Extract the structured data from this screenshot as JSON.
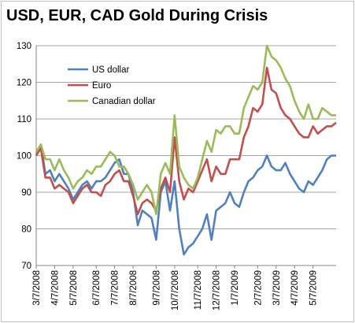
{
  "chart_data": {
    "type": "line",
    "title": "USD, EUR, CAD Gold During Crisis",
    "xlabel": "",
    "ylabel": "",
    "ylim": [
      70,
      130
    ],
    "yticks": [
      70,
      80,
      90,
      100,
      110,
      120,
      130
    ],
    "xtick_labels": [
      "3/7/2008",
      "4/7/2008",
      "5/7/2008",
      "6/7/2008",
      "7/7/2008",
      "8/7/2008",
      "9/7/2008",
      "10/7/2008",
      "11/7/2008",
      "12/7/2008",
      "1/7/2009",
      "2/7/2009",
      "3/7/2009",
      "4/7/2009",
      "5/7/2009"
    ],
    "grid": "horizontal",
    "legend_position": "top-left",
    "x": [
      "3/7/2008",
      "3/14/2008",
      "3/21/2008",
      "3/28/2008",
      "4/4/2008",
      "4/11/2008",
      "4/18/2008",
      "4/25/2008",
      "5/2/2008",
      "5/9/2008",
      "5/16/2008",
      "5/23/2008",
      "5/30/2008",
      "6/6/2008",
      "6/13/2008",
      "6/20/2008",
      "6/27/2008",
      "7/4/2008",
      "7/11/2008",
      "7/18/2008",
      "7/25/2008",
      "8/1/2008",
      "8/8/2008",
      "8/15/2008",
      "8/22/2008",
      "8/29/2008",
      "9/5/2008",
      "9/12/2008",
      "9/19/2008",
      "9/26/2008",
      "10/3/2008",
      "10/10/2008",
      "10/17/2008",
      "10/24/2008",
      "10/31/2008",
      "11/7/2008",
      "11/14/2008",
      "11/21/2008",
      "11/28/2008",
      "12/5/2008",
      "12/12/2008",
      "12/19/2008",
      "12/26/2008",
      "1/2/2009",
      "1/9/2009",
      "1/16/2009",
      "1/23/2009",
      "1/30/2009",
      "2/6/2009",
      "2/13/2009",
      "2/20/2009",
      "2/27/2009",
      "3/6/2009",
      "3/13/2009",
      "3/20/2009",
      "3/27/2009",
      "4/3/2009",
      "4/10/2009",
      "4/17/2009",
      "4/24/2009",
      "5/1/2009",
      "5/8/2009",
      "5/15/2009",
      "5/22/2009",
      "5/29/2009",
      "6/5/2009"
    ],
    "series": [
      {
        "name": "US dollar",
        "color": "#4f81bd",
        "values": [
          100,
          103,
          95,
          96,
          93,
          95,
          93,
          91,
          88,
          90,
          92,
          93,
          91,
          93,
          93,
          94,
          96,
          98,
          99,
          95,
          95,
          90,
          81,
          85,
          84,
          83,
          77,
          90,
          93,
          85,
          93,
          80,
          73,
          75,
          76,
          78,
          80,
          84,
          77,
          85,
          86,
          87,
          90,
          87,
          86,
          90,
          93,
          94,
          96,
          97,
          100,
          97,
          96,
          96,
          98,
          95,
          93,
          91,
          90,
          93,
          92,
          94,
          96,
          99,
          100,
          100
        ]
      },
      {
        "name": "Euro",
        "color": "#c0504d",
        "values": [
          100,
          102,
          94,
          94,
          91,
          92,
          91,
          90,
          87,
          89,
          91,
          92,
          90,
          90,
          89,
          92,
          93,
          95,
          96,
          93,
          93,
          89,
          84,
          87,
          88,
          87,
          85,
          91,
          94,
          90,
          105,
          93,
          88,
          91,
          90,
          93,
          96,
          99,
          93,
          97,
          95,
          95,
          99,
          99,
          99,
          105,
          108,
          113,
          112,
          114,
          124,
          118,
          117,
          113,
          111,
          110,
          108,
          106,
          105,
          105,
          108,
          106,
          107,
          108,
          108,
          109
        ]
      },
      {
        "name": "Canadian dollar",
        "color": "#9bbb59",
        "values": [
          101,
          103,
          99,
          99,
          96,
          99,
          96,
          94,
          91,
          93,
          94,
          96,
          95,
          97,
          97,
          99,
          101,
          100,
          97,
          97,
          95,
          92,
          88,
          90,
          92,
          90,
          84,
          95,
          98,
          95,
          111,
          97,
          94,
          92,
          91,
          94,
          99,
          104,
          101,
          107,
          106,
          108,
          108,
          106,
          106,
          113,
          116,
          119,
          118,
          120,
          130,
          127,
          126,
          124,
          121,
          119,
          115,
          112,
          110,
          114,
          110,
          110,
          113,
          112,
          111,
          111
        ]
      }
    ]
  }
}
